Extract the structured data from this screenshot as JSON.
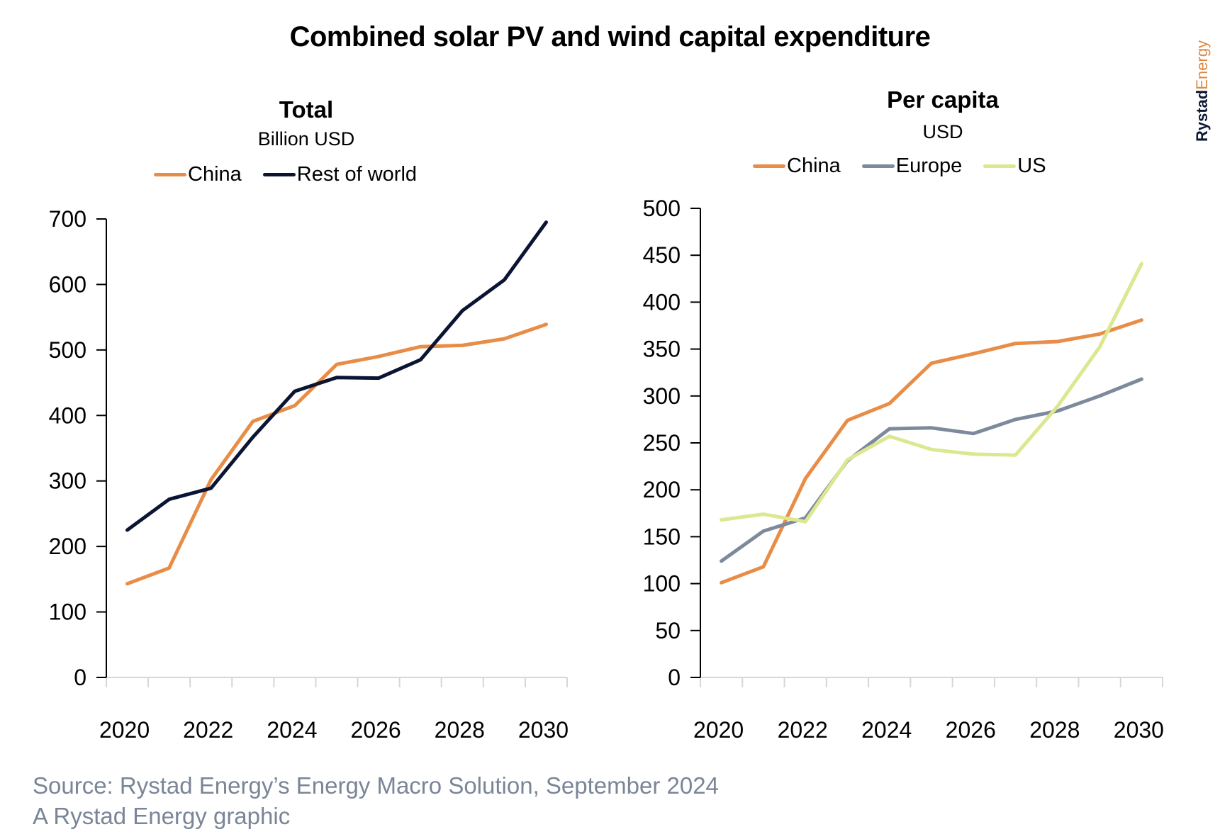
{
  "title": "Combined solar PV and wind capital expenditure",
  "logo": {
    "part1": "Rystad",
    "part2": "Energy"
  },
  "source_lines": [
    "Source: Rystad Energy’s Energy Macro Solution, September 2024",
    "A Rystad Energy graphic"
  ],
  "colors": {
    "china": "#e88d47",
    "rest_of_world": "#0b1533",
    "europe": "#7d8a9c",
    "us": "#dce88f",
    "axis": "#000000",
    "xaxis": "#d6d6d6",
    "source_text": "#7a8597"
  },
  "chart_data": [
    {
      "type": "line",
      "title": "Total",
      "subtitle": "Billion USD",
      "xlabel": "",
      "ylabel": "Billion USD",
      "x": [
        2020,
        2021,
        2022,
        2023,
        2024,
        2025,
        2026,
        2027,
        2028,
        2029,
        2030
      ],
      "x_tick_labels": [
        "2020",
        "2022",
        "2024",
        "2026",
        "2028",
        "2030"
      ],
      "ylim": [
        0,
        700
      ],
      "y_ticks": [
        0,
        100,
        200,
        300,
        400,
        500,
        600,
        700
      ],
      "grid": false,
      "legend_position": "top-center",
      "series": [
        {
          "name": "China",
          "color_key": "china",
          "values": [
            143,
            167,
            302,
            391,
            415,
            478,
            490,
            505,
            507,
            517,
            539
          ]
        },
        {
          "name": "Rest of world",
          "color_key": "rest_of_world",
          "values": [
            225,
            272,
            289,
            367,
            437,
            458,
            457,
            485,
            560,
            607,
            695
          ]
        }
      ]
    },
    {
      "type": "line",
      "title": "Per capita",
      "subtitle": "USD",
      "xlabel": "",
      "ylabel": "USD",
      "x": [
        2020,
        2021,
        2022,
        2023,
        2024,
        2025,
        2026,
        2027,
        2028,
        2029,
        2030
      ],
      "x_tick_labels": [
        "2020",
        "2022",
        "2024",
        "2026",
        "2028",
        "2030"
      ],
      "ylim": [
        0,
        500
      ],
      "y_ticks": [
        0,
        50,
        100,
        150,
        200,
        250,
        300,
        350,
        400,
        450,
        500
      ],
      "grid": false,
      "legend_position": "top-center",
      "series": [
        {
          "name": "China",
          "color_key": "china",
          "values": [
            101,
            118,
            212,
            274,
            292,
            335,
            345,
            356,
            358,
            366,
            381
          ]
        },
        {
          "name": "Europe",
          "color_key": "europe",
          "values": [
            124,
            156,
            170,
            231,
            265,
            266,
            260,
            275,
            284,
            300,
            318
          ]
        },
        {
          "name": "US",
          "color_key": "us",
          "values": [
            168,
            174,
            166,
            232,
            257,
            243,
            238,
            237,
            289,
            352,
            441
          ]
        }
      ]
    }
  ]
}
